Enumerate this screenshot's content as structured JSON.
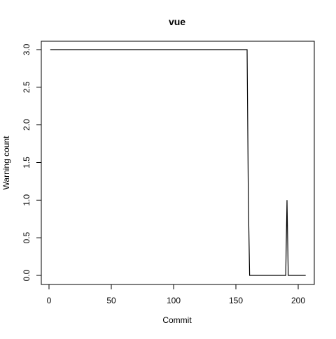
{
  "chart_data": {
    "type": "line",
    "title": "vue",
    "xlabel": "Commit",
    "ylabel": "Warning count",
    "xlim": [
      0,
      210
    ],
    "ylim": [
      0,
      3.0
    ],
    "x_ticks": [
      0,
      50,
      100,
      150,
      200
    ],
    "y_ticks": [
      0.0,
      0.5,
      1.0,
      1.5,
      2.0,
      2.5,
      3.0
    ],
    "x_tick_labels": [
      "0",
      "50",
      "100",
      "150",
      "200"
    ],
    "y_tick_labels": [
      "0.0",
      "0.5",
      "1.0",
      "1.5",
      "2.0",
      "2.5",
      "3.0"
    ],
    "grid": false,
    "series": [
      {
        "color": "#000000",
        "x": [
          1,
          159,
          160,
          161,
          189,
          190,
          191,
          192,
          206
        ],
        "y": [
          3,
          3,
          1,
          0,
          0,
          0,
          1,
          0,
          0
        ]
      }
    ]
  }
}
